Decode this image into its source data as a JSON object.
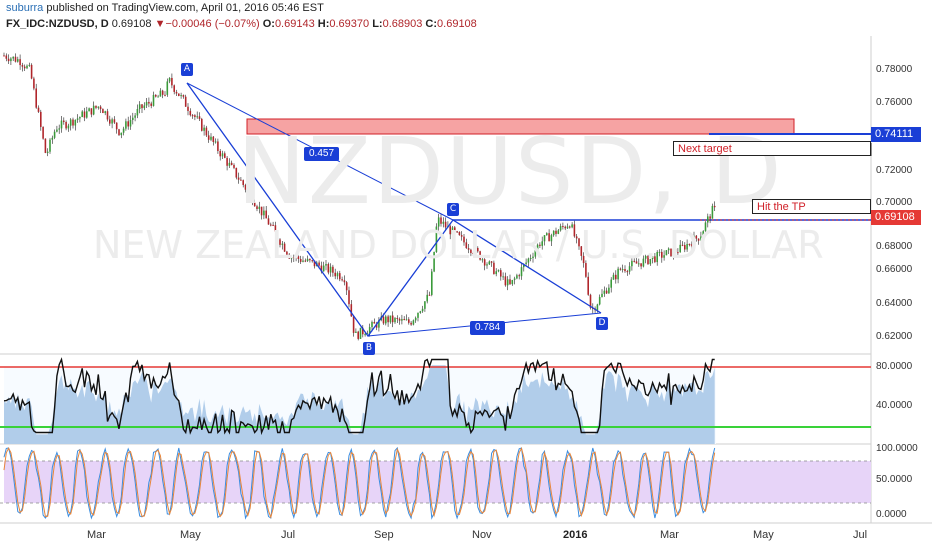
{
  "header": {
    "author": "suburra",
    "published": "published on TradingView.com, April 01, 2016 05:46 EST",
    "symbol": "FX_IDC:NZDUSD, D",
    "last": "0.69108",
    "change_arrow": "▼",
    "change": "−0.00046 (−0.07%)",
    "open_label": "O:",
    "open": "0.69143",
    "high_label": "H:",
    "high": "0.69370",
    "low_label": "L:",
    "low": "0.68903",
    "close_label": "C:",
    "close": "0.69108"
  },
  "watermark": {
    "symbol": "NZDUSD, D",
    "description": "NEW ZEALAND DOLLAR / U.S. DOLLAR"
  },
  "annotations": {
    "points": [
      "A",
      "B",
      "C",
      "D"
    ],
    "ratio_ab_label": "0.457",
    "ratio_bd_label": "0.784",
    "next_target": "Next target",
    "hit_tp": "Hit the TP"
  },
  "price_axis": {
    "ticks": [
      "0.78000",
      "0.76000",
      "0.74000",
      "0.72000",
      "0.70000",
      "0.68000",
      "0.66000",
      "0.64000",
      "0.62000"
    ],
    "target_tag": "0.74111",
    "last_tag": "0.69108"
  },
  "rsi_axis": {
    "ticks": [
      "80.0000",
      "40.0000"
    ]
  },
  "stoch_axis": {
    "ticks": [
      "100.0000",
      "50.0000",
      "0.0000"
    ]
  },
  "time_axis": {
    "labels": [
      "Mar",
      "May",
      "Jul",
      "Sep",
      "Nov",
      "2016",
      "Mar",
      "May",
      "Jul"
    ]
  },
  "colors": {
    "up_candle": "#3a9a3a",
    "down_candle": "#b0262b",
    "pattern": "#1a3fd6",
    "target_zone": "#f6a3a3",
    "rsi_fill": "#a9c8e8",
    "stoch_band": "#e7d4f8",
    "upper_level": "#e53935",
    "lower_level": "#39d239"
  },
  "chart_data": [
    {
      "type": "candlestick",
      "title": "NZDUSD, D",
      "ylim": [
        0.61,
        0.795
      ],
      "x": [
        "2015-03",
        "2015-05",
        "2015-07",
        "2015-09",
        "2015-11",
        "2016",
        "2016-03",
        "2016-05",
        "2016-07"
      ],
      "swing_points": [
        {
          "label": "A",
          "date": "2015-04-29",
          "price": 0.773
        },
        {
          "label": "B",
          "date": "2015-08-24",
          "price": 0.62
        },
        {
          "label": "C",
          "date": "2015-10-15",
          "price": 0.69
        },
        {
          "label": "D",
          "date": "2016-01-20",
          "price": 0.635
        }
      ],
      "levels": [
        {
          "name": "target",
          "value": 0.74111
        },
        {
          "name": "last",
          "value": 0.69108
        },
        {
          "name": "C level",
          "value": 0.69
        }
      ],
      "target_zone": [
        0.742,
        0.751
      ],
      "last_ohlc": {
        "open": 0.69143,
        "high": 0.6937,
        "low": 0.68903,
        "close": 0.69108
      }
    },
    {
      "type": "line",
      "title": "",
      "ylim": [
        0,
        100
      ],
      "levels": [
        80,
        30
      ]
    },
    {
      "type": "line",
      "title": "",
      "ylim": [
        0,
        100
      ],
      "band": [
        20,
        80
      ]
    }
  ]
}
